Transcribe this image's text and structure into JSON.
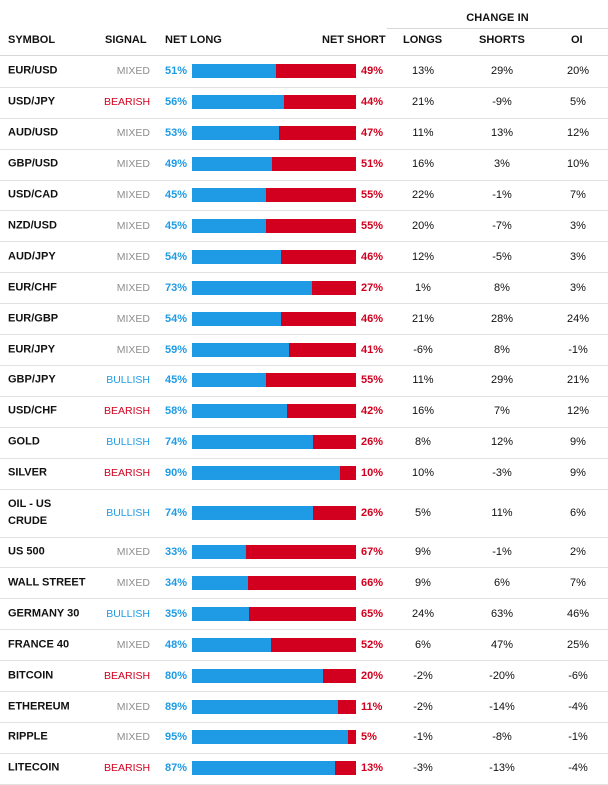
{
  "header": {
    "group": "CHANGE IN",
    "symbol": "SYMBOL",
    "signal": "SIGNAL",
    "net_long": "NET LONG",
    "net_short": "NET SHORT",
    "longs": "LONGS",
    "shorts": "SHORTS",
    "oi": "OI"
  },
  "colors": {
    "long": "#1e9be4",
    "short": "#d2001e",
    "mixed": "#8e8e8e"
  },
  "rows": [
    {
      "symbol": "EUR/USD",
      "signal": "MIXED",
      "net_long": "51%",
      "net_short": "49%",
      "longs": "13%",
      "shorts": "29%",
      "oi": "20%"
    },
    {
      "symbol": "USD/JPY",
      "signal": "BEARISH",
      "net_long": "56%",
      "net_short": "44%",
      "longs": "21%",
      "shorts": "-9%",
      "oi": "5%"
    },
    {
      "symbol": "AUD/USD",
      "signal": "MIXED",
      "net_long": "53%",
      "net_short": "47%",
      "longs": "11%",
      "shorts": "13%",
      "oi": "12%"
    },
    {
      "symbol": "GBP/USD",
      "signal": "MIXED",
      "net_long": "49%",
      "net_short": "51%",
      "longs": "16%",
      "shorts": "3%",
      "oi": "10%"
    },
    {
      "symbol": "USD/CAD",
      "signal": "MIXED",
      "net_long": "45%",
      "net_short": "55%",
      "longs": "22%",
      "shorts": "-1%",
      "oi": "7%"
    },
    {
      "symbol": "NZD/USD",
      "signal": "MIXED",
      "net_long": "45%",
      "net_short": "55%",
      "longs": "20%",
      "shorts": "-7%",
      "oi": "3%"
    },
    {
      "symbol": "AUD/JPY",
      "signal": "MIXED",
      "net_long": "54%",
      "net_short": "46%",
      "longs": "12%",
      "shorts": "-5%",
      "oi": "3%"
    },
    {
      "symbol": "EUR/CHF",
      "signal": "MIXED",
      "net_long": "73%",
      "net_short": "27%",
      "longs": "1%",
      "shorts": "8%",
      "oi": "3%"
    },
    {
      "symbol": "EUR/GBP",
      "signal": "MIXED",
      "net_long": "54%",
      "net_short": "46%",
      "longs": "21%",
      "shorts": "28%",
      "oi": "24%"
    },
    {
      "symbol": "EUR/JPY",
      "signal": "MIXED",
      "net_long": "59%",
      "net_short": "41%",
      "longs": "-6%",
      "shorts": "8%",
      "oi": "-1%"
    },
    {
      "symbol": "GBP/JPY",
      "signal": "BULLISH",
      "net_long": "45%",
      "net_short": "55%",
      "longs": "11%",
      "shorts": "29%",
      "oi": "21%"
    },
    {
      "symbol": "USD/CHF",
      "signal": "BEARISH",
      "net_long": "58%",
      "net_short": "42%",
      "longs": "16%",
      "shorts": "7%",
      "oi": "12%"
    },
    {
      "symbol": "GOLD",
      "signal": "BULLISH",
      "net_long": "74%",
      "net_short": "26%",
      "longs": "8%",
      "shorts": "12%",
      "oi": "9%"
    },
    {
      "symbol": "SILVER",
      "signal": "BEARISH",
      "net_long": "90%",
      "net_short": "10%",
      "longs": "10%",
      "shorts": "-3%",
      "oi": "9%"
    },
    {
      "symbol": "OIL - US CRUDE",
      "signal": "BULLISH",
      "net_long": "74%",
      "net_short": "26%",
      "longs": "5%",
      "shorts": "11%",
      "oi": "6%"
    },
    {
      "symbol": "US 500",
      "signal": "MIXED",
      "net_long": "33%",
      "net_short": "67%",
      "longs": "9%",
      "shorts": "-1%",
      "oi": "2%"
    },
    {
      "symbol": "WALL STREET",
      "signal": "MIXED",
      "net_long": "34%",
      "net_short": "66%",
      "longs": "9%",
      "shorts": "6%",
      "oi": "7%"
    },
    {
      "symbol": "GERMANY 30",
      "signal": "BULLISH",
      "net_long": "35%",
      "net_short": "65%",
      "longs": "24%",
      "shorts": "63%",
      "oi": "46%"
    },
    {
      "symbol": "FRANCE 40",
      "signal": "MIXED",
      "net_long": "48%",
      "net_short": "52%",
      "longs": "6%",
      "shorts": "47%",
      "oi": "25%"
    },
    {
      "symbol": "BITCOIN",
      "signal": "BEARISH",
      "net_long": "80%",
      "net_short": "20%",
      "longs": "-2%",
      "shorts": "-20%",
      "oi": "-6%"
    },
    {
      "symbol": "ETHEREUM",
      "signal": "MIXED",
      "net_long": "89%",
      "net_short": "11%",
      "longs": "-2%",
      "shorts": "-14%",
      "oi": "-4%"
    },
    {
      "symbol": "RIPPLE",
      "signal": "MIXED",
      "net_long": "95%",
      "net_short": "5%",
      "longs": "-1%",
      "shorts": "-8%",
      "oi": "-1%"
    },
    {
      "symbol": "LITECOIN",
      "signal": "BEARISH",
      "net_long": "87%",
      "net_short": "13%",
      "longs": "-3%",
      "shorts": "-13%",
      "oi": "-4%"
    }
  ],
  "chart_data": {
    "type": "bar",
    "stacked": true,
    "categories": [
      "EUR/USD",
      "USD/JPY",
      "AUD/USD",
      "GBP/USD",
      "USD/CAD",
      "NZD/USD",
      "AUD/JPY",
      "EUR/CHF",
      "EUR/GBP",
      "EUR/JPY",
      "GBP/JPY",
      "USD/CHF",
      "GOLD",
      "SILVER",
      "OIL - US CRUDE",
      "US 500",
      "WALL STREET",
      "GERMANY 30",
      "FRANCE 40",
      "BITCOIN",
      "ETHEREUM",
      "RIPPLE",
      "LITECOIN"
    ],
    "series": [
      {
        "name": "NET LONG",
        "values": [
          51,
          56,
          53,
          49,
          45,
          45,
          54,
          73,
          54,
          59,
          45,
          58,
          74,
          90,
          74,
          33,
          34,
          35,
          48,
          80,
          89,
          95,
          87
        ]
      },
      {
        "name": "NET SHORT",
        "values": [
          49,
          44,
          47,
          51,
          55,
          55,
          46,
          27,
          46,
          41,
          55,
          42,
          26,
          10,
          26,
          67,
          66,
          65,
          52,
          20,
          11,
          5,
          13
        ]
      }
    ],
    "ylim": [
      0,
      100
    ]
  }
}
